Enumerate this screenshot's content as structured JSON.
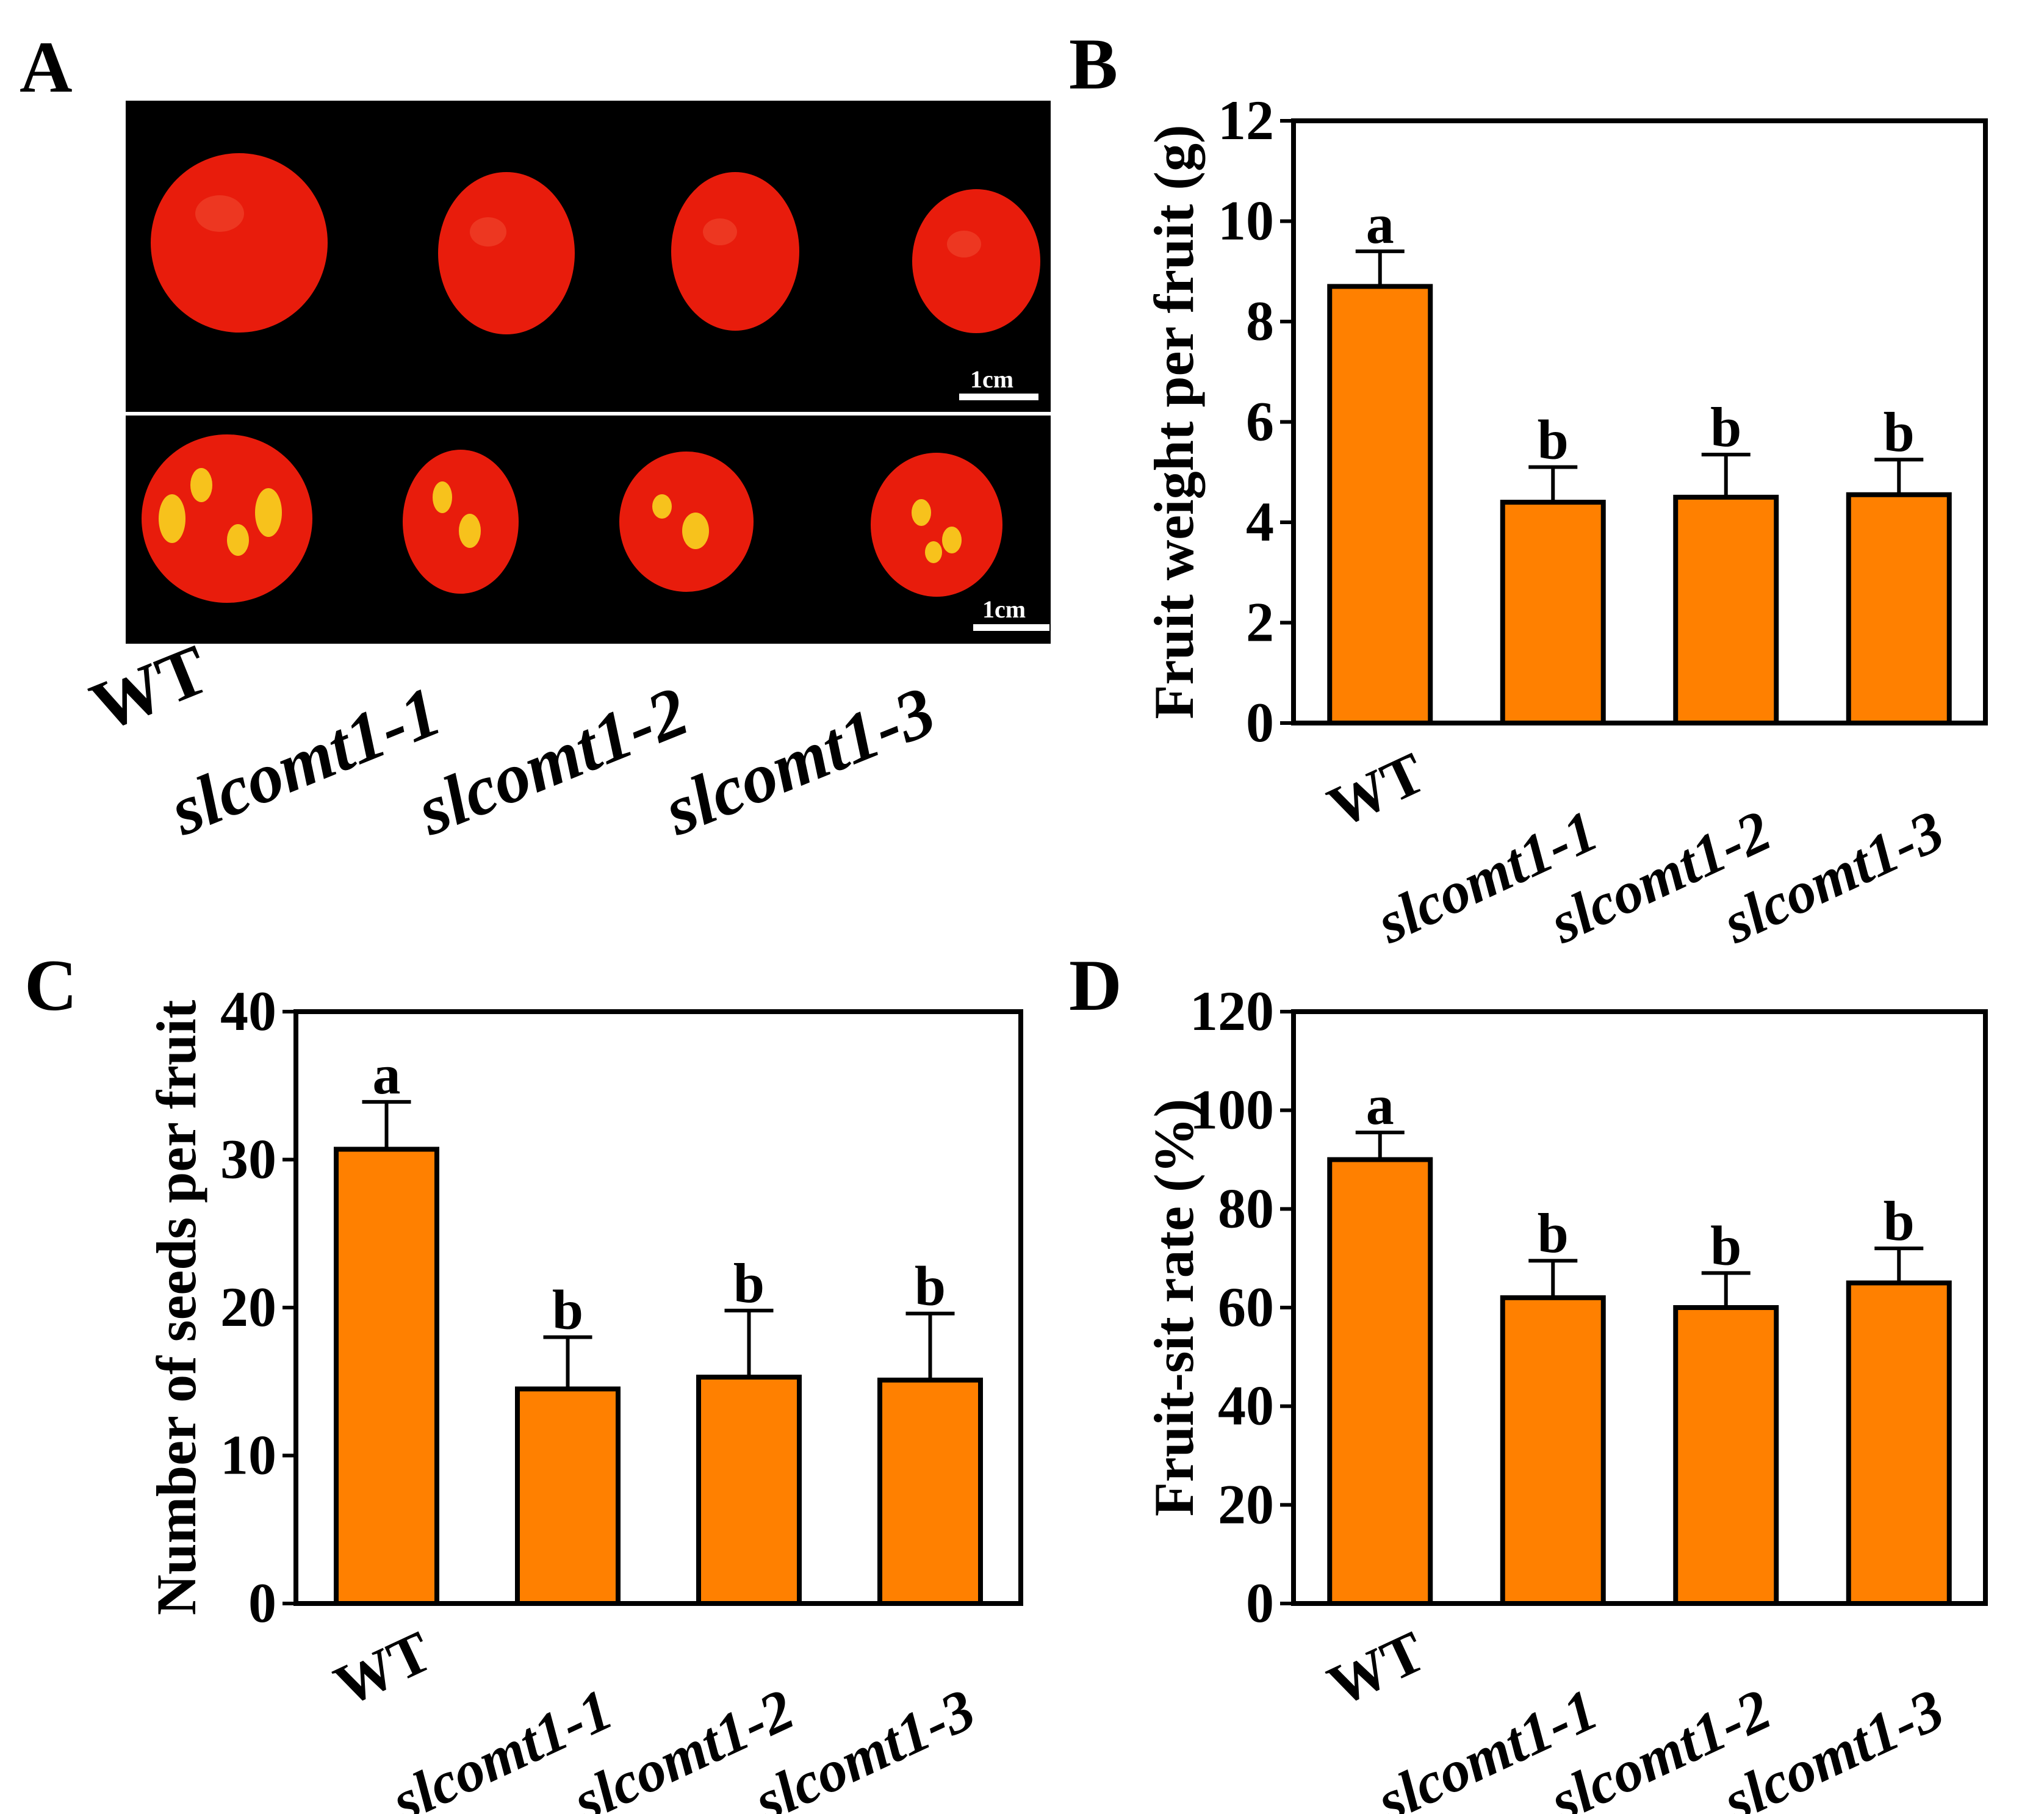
{
  "panel_a": {
    "letter": "A",
    "scale_bar_label": "1cm",
    "genotype_labels": [
      "WT",
      "slcomt1-1",
      "slcomt1-2",
      "slcomt1-3"
    ],
    "colors": {
      "background": "#000000",
      "fruit": "#e81c0c",
      "locule": "#f7c21c"
    }
  },
  "colors": {
    "bar": "#ff8000",
    "bar_stroke": "#000000"
  },
  "chart_data": [
    {
      "panel": "B",
      "type": "bar",
      "categories": [
        "WT",
        "slcomt1-1",
        "slcomt1-2",
        "slcomt1-3"
      ],
      "values": [
        8.7,
        4.4,
        4.5,
        4.55
      ],
      "errors": [
        0.7,
        0.7,
        0.85,
        0.7
      ],
      "significance": [
        "a",
        "b",
        "b",
        "b"
      ],
      "ylabel": "Fruit weight per fruit (g)",
      "ylim": [
        0,
        12
      ],
      "yticks": [
        "0",
        "2",
        "4",
        "6",
        "8",
        "10",
        "12"
      ],
      "grid": false,
      "legend": false
    },
    {
      "panel": "C",
      "type": "bar",
      "categories": [
        "WT",
        "slcomt1-1",
        "slcomt1-2",
        "slcomt1-3"
      ],
      "values": [
        30.7,
        14.5,
        15.3,
        15.1
      ],
      "errors": [
        3.2,
        3.5,
        4.5,
        4.5
      ],
      "significance": [
        "a",
        "b",
        "b",
        "b"
      ],
      "ylabel": "Number of seeds per fruit",
      "ylim": [
        0,
        40
      ],
      "yticks": [
        "0",
        "10",
        "20",
        "30",
        "40"
      ],
      "grid": false,
      "legend": false
    },
    {
      "panel": "D",
      "type": "bar",
      "categories": [
        "WT",
        "slcomt1-1",
        "slcomt1-2",
        "slcomt1-3"
      ],
      "values": [
        90,
        62,
        60,
        65
      ],
      "errors": [
        5.5,
        7.5,
        7,
        7
      ],
      "significance": [
        "a",
        "b",
        "b",
        "b"
      ],
      "ylabel": "Fruit-sit rate (%)",
      "ylim": [
        0,
        120
      ],
      "yticks": [
        "0",
        "20",
        "40",
        "60",
        "80",
        "100",
        "120"
      ],
      "grid": false,
      "legend": false
    }
  ]
}
